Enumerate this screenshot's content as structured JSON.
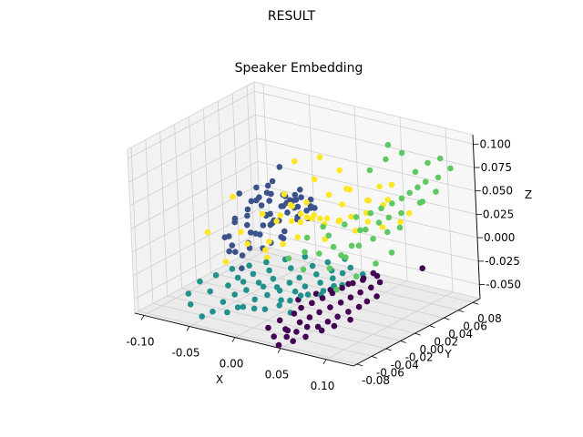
{
  "figure": {
    "suptitle": "RESULT"
  },
  "chart_data": {
    "type": "scatter",
    "projection": "3d",
    "title": "Speaker Embedding",
    "xlabel": "X",
    "ylabel": "Y",
    "zlabel": "Z",
    "xlim": [
      -0.11,
      0.13
    ],
    "ylim": [
      -0.085,
      0.09
    ],
    "zlim": [
      -0.065,
      0.11
    ],
    "x_ticks": [
      "-0.10",
      "-0.05",
      "0.00",
      "0.05",
      "0.10"
    ],
    "y_ticks": [
      "-0.08",
      "-0.06",
      "-0.04",
      "-0.02",
      "0.00",
      "0.02",
      "0.04",
      "0.06",
      "0.08"
    ],
    "z_ticks": [
      "-0.050",
      "-0.025",
      "0.000",
      "0.025",
      "0.050",
      "0.075",
      "0.100"
    ],
    "x_tick_values": [
      -0.1,
      -0.05,
      0.0,
      0.05,
      0.1
    ],
    "y_tick_values": [
      -0.08,
      -0.06,
      -0.04,
      -0.02,
      0.0,
      0.02,
      0.04,
      0.06,
      0.08
    ],
    "z_tick_values": [
      -0.05,
      -0.025,
      0.0,
      0.025,
      0.05,
      0.075,
      0.1
    ],
    "grid": true,
    "legend": "none",
    "colormap": "viridis",
    "series": [
      {
        "color": "#3b528b",
        "x": [
          -0.085,
          -0.08,
          -0.075,
          -0.072,
          -0.07,
          -0.068,
          -0.065,
          -0.063,
          -0.06,
          -0.058,
          -0.056,
          -0.055,
          -0.053,
          -0.052,
          -0.05,
          -0.049,
          -0.048,
          -0.046,
          -0.045,
          -0.044,
          -0.042,
          -0.041,
          -0.04,
          -0.039,
          -0.038,
          -0.036,
          -0.035,
          -0.033,
          -0.032,
          -0.03,
          -0.029,
          -0.028,
          -0.026,
          -0.025,
          -0.024,
          -0.022,
          -0.02,
          -0.018,
          -0.016,
          -0.015,
          -0.014,
          -0.012,
          -0.01,
          -0.008,
          -0.006,
          -0.004,
          -0.002,
          0.0,
          -0.062,
          -0.058,
          -0.054,
          -0.047,
          -0.043,
          -0.037,
          -0.031,
          -0.027,
          -0.021,
          -0.017,
          -0.011,
          -0.07,
          -0.066,
          -0.059,
          -0.051,
          -0.045,
          -0.034
        ],
        "y": [
          0.02,
          0.01,
          0.03,
          0.0,
          0.025,
          -0.01,
          0.035,
          0.015,
          -0.005,
          0.04,
          0.02,
          0.005,
          -0.015,
          0.03,
          0.01,
          0.045,
          -0.02,
          0.025,
          0.0,
          0.035,
          0.015,
          -0.01,
          0.04,
          0.02,
          0.005,
          0.03,
          -0.015,
          0.01,
          0.045,
          0.025,
          -0.005,
          0.035,
          0.015,
          0.0,
          0.04,
          0.02,
          0.03,
          0.01,
          0.045,
          0.025,
          0.005,
          0.035,
          0.015,
          0.04,
          0.02,
          0.03,
          0.01,
          0.025,
          0.05,
          0.0,
          0.03,
          0.01,
          0.045,
          0.02,
          0.035,
          0.005,
          0.03,
          0.04,
          0.025,
          0.015,
          0.035,
          0.0,
          0.02,
          0.04,
          0.01
        ],
        "z": [
          -0.03,
          -0.015,
          0.0,
          -0.025,
          0.01,
          -0.005,
          0.02,
          -0.02,
          0.015,
          -0.01,
          0.025,
          0.005,
          -0.015,
          0.03,
          -0.005,
          0.01,
          0.02,
          -0.02,
          0.035,
          0.0,
          0.015,
          -0.01,
          0.025,
          0.005,
          0.03,
          -0.015,
          0.01,
          0.02,
          0.0,
          0.035,
          0.015,
          0.025,
          -0.005,
          0.04,
          0.01,
          0.02,
          0.03,
          0.005,
          0.025,
          0.015,
          0.035,
          0.01,
          0.03,
          0.02,
          0.04,
          0.025,
          0.035,
          0.03,
          -0.01,
          0.04,
          0.005,
          0.045,
          0.015,
          0.05,
          0.025,
          0.045,
          0.035,
          0.015,
          0.045,
          -0.035,
          -0.02,
          -0.04,
          -0.025,
          0.055,
          0.05
        ]
      },
      {
        "color": "#fde725",
        "x": [
          -0.095,
          -0.06,
          -0.05,
          -0.04,
          -0.035,
          -0.03,
          -0.025,
          -0.02,
          -0.018,
          -0.015,
          -0.012,
          -0.01,
          -0.008,
          -0.005,
          -0.003,
          0.0,
          0.002,
          0.005,
          0.007,
          0.01,
          0.012,
          0.015,
          0.018,
          0.02,
          0.022,
          0.025,
          0.028,
          0.03,
          0.032,
          0.035,
          0.038,
          0.04,
          0.045,
          0.05,
          0.055,
          0.06,
          0.065,
          0.07,
          -0.045,
          -0.028,
          -0.008,
          0.004,
          0.016,
          0.026,
          0.036,
          0.046,
          0.058,
          -0.055,
          0.09,
          0.105
        ],
        "y": [
          0.0,
          -0.02,
          -0.01,
          0.01,
          -0.02,
          0.02,
          -0.01,
          0.03,
          0.0,
          -0.015,
          0.025,
          0.01,
          -0.005,
          0.035,
          0.015,
          0.0,
          0.04,
          0.02,
          -0.01,
          0.03,
          0.005,
          0.045,
          0.015,
          -0.005,
          0.035,
          0.02,
          0.05,
          0.01,
          0.04,
          0.025,
          0.055,
          0.03,
          0.045,
          0.06,
          0.035,
          0.05,
          0.04,
          0.06,
          -0.025,
          0.04,
          0.05,
          -0.015,
          0.055,
          0.0,
          0.06,
          0.01,
          0.065,
          0.03,
          0.02,
          0.03
        ],
        "z": [
          -0.01,
          -0.025,
          0.005,
          -0.02,
          0.0,
          0.015,
          0.03,
          -0.01,
          0.02,
          0.005,
          0.01,
          0.035,
          0.0,
          0.015,
          0.025,
          0.04,
          0.005,
          0.02,
          0.03,
          -0.005,
          0.045,
          0.01,
          0.025,
          0.035,
          0.015,
          0.05,
          0.0,
          0.03,
          0.02,
          0.04,
          0.01,
          0.055,
          0.025,
          0.005,
          0.045,
          0.035,
          0.06,
          0.015,
          0.05,
          0.065,
          0.07,
          0.06,
          0.04,
          0.075,
          0.03,
          0.085,
          0.05,
          -0.04,
          0.06,
          0.045
        ]
      },
      {
        "color": "#21918c",
        "x": [
          -0.07,
          -0.065,
          -0.06,
          -0.055,
          -0.05,
          -0.045,
          -0.04,
          -0.038,
          -0.035,
          -0.032,
          -0.03,
          -0.027,
          -0.025,
          -0.022,
          -0.02,
          -0.018,
          -0.015,
          -0.012,
          -0.01,
          -0.008,
          -0.005,
          -0.003,
          0.0,
          0.002,
          0.005,
          0.008,
          0.01,
          0.012,
          0.015,
          0.018,
          0.02,
          0.022,
          0.025,
          0.028,
          0.03,
          0.032,
          0.035,
          0.038,
          0.04,
          0.042,
          0.045,
          0.048,
          0.05,
          0.053,
          0.055,
          0.058,
          0.06,
          0.063,
          0.065,
          0.07,
          -0.048,
          -0.028,
          -0.006,
          0.016,
          0.034,
          0.052,
          0.068,
          0.075
        ],
        "y": [
          -0.06,
          -0.05,
          -0.07,
          -0.04,
          -0.055,
          -0.03,
          -0.065,
          -0.045,
          -0.035,
          -0.06,
          -0.025,
          -0.05,
          -0.04,
          -0.03,
          -0.055,
          -0.045,
          -0.02,
          -0.035,
          -0.06,
          -0.025,
          -0.05,
          -0.04,
          -0.03,
          -0.015,
          -0.045,
          -0.035,
          -0.055,
          -0.02,
          -0.04,
          -0.03,
          -0.01,
          -0.05,
          -0.025,
          -0.035,
          -0.045,
          -0.015,
          -0.03,
          -0.04,
          -0.02,
          -0.035,
          -0.01,
          -0.025,
          -0.04,
          -0.015,
          -0.03,
          -0.02,
          -0.005,
          -0.025,
          -0.015,
          -0.01,
          -0.07,
          -0.06,
          -0.05,
          -0.04,
          -0.05,
          -0.03,
          -0.02,
          0.0
        ],
        "z": [
          -0.045,
          -0.035,
          -0.05,
          -0.03,
          -0.04,
          -0.025,
          -0.055,
          -0.035,
          -0.03,
          -0.045,
          -0.02,
          -0.04,
          -0.03,
          -0.025,
          -0.05,
          -0.035,
          -0.015,
          -0.03,
          -0.045,
          -0.02,
          -0.04,
          -0.03,
          -0.025,
          -0.01,
          -0.035,
          -0.03,
          -0.045,
          -0.015,
          -0.03,
          -0.025,
          -0.005,
          -0.04,
          -0.02,
          -0.03,
          -0.035,
          -0.01,
          -0.025,
          -0.03,
          -0.015,
          -0.03,
          -0.005,
          -0.02,
          -0.035,
          -0.01,
          -0.025,
          -0.015,
          0.0,
          -0.02,
          -0.01,
          -0.005,
          -0.06,
          -0.055,
          -0.05,
          -0.04,
          -0.045,
          -0.03,
          -0.02,
          -0.015
        ]
      },
      {
        "color": "#5ec962",
        "x": [
          0.01,
          0.015,
          0.02,
          0.025,
          0.03,
          0.035,
          0.04,
          0.045,
          0.048,
          0.05,
          0.052,
          0.055,
          0.058,
          0.06,
          0.062,
          0.065,
          0.068,
          0.07,
          0.072,
          0.075,
          0.078,
          0.08,
          0.082,
          0.085,
          0.088,
          0.09,
          0.092,
          0.095,
          0.098,
          0.1,
          0.105,
          0.11,
          0.115,
          0.12,
          0.055,
          0.065,
          0.075,
          0.085,
          0.095,
          0.105,
          0.07,
          0.08,
          0.09,
          0.1,
          0.06,
          0.112
        ],
        "y": [
          -0.02,
          0.0,
          -0.01,
          0.01,
          -0.025,
          0.005,
          -0.015,
          0.015,
          -0.005,
          0.025,
          0.0,
          -0.02,
          0.02,
          0.005,
          0.03,
          -0.01,
          0.015,
          0.035,
          0.0,
          0.025,
          0.04,
          0.01,
          0.03,
          0.045,
          0.02,
          0.05,
          0.035,
          0.055,
          0.025,
          0.06,
          0.045,
          0.065,
          0.055,
          0.07,
          0.04,
          0.05,
          0.06,
          0.065,
          0.07,
          0.075,
          -0.03,
          -0.015,
          0.0,
          0.01,
          0.06,
          0.04
        ],
        "z": [
          -0.005,
          0.01,
          0.0,
          0.02,
          -0.01,
          0.015,
          0.005,
          0.025,
          0.01,
          0.03,
          0.0,
          -0.005,
          0.02,
          0.01,
          0.035,
          0.005,
          0.025,
          0.04,
          0.015,
          0.03,
          0.045,
          0.02,
          0.035,
          0.05,
          0.025,
          0.055,
          0.04,
          0.06,
          0.03,
          0.065,
          0.05,
          0.07,
          0.06,
          0.08,
          0.075,
          0.085,
          0.09,
          0.07,
          0.08,
          0.085,
          -0.02,
          -0.01,
          0.0,
          0.01,
          0.095,
          0.055
        ]
      },
      {
        "color": "#440154",
        "x": [
          0.025,
          0.03,
          0.035,
          0.038,
          0.04,
          0.042,
          0.045,
          0.048,
          0.05,
          0.052,
          0.055,
          0.058,
          0.06,
          0.062,
          0.065,
          0.068,
          0.07,
          0.072,
          0.075,
          0.078,
          0.08,
          0.082,
          0.085,
          0.088,
          0.09,
          0.092,
          0.095,
          0.098,
          0.1,
          0.103,
          0.106,
          0.11,
          0.044,
          0.056,
          0.066,
          0.076,
          0.086,
          0.096,
          0.035,
          0.047,
          0.059,
          0.071,
          0.083,
          0.095,
          0.03,
          0.125
        ],
        "y": [
          -0.07,
          -0.06,
          -0.075,
          -0.05,
          -0.065,
          -0.045,
          -0.07,
          -0.055,
          -0.04,
          -0.065,
          -0.05,
          -0.035,
          -0.06,
          -0.045,
          -0.03,
          -0.055,
          -0.04,
          -0.025,
          -0.05,
          -0.035,
          -0.02,
          -0.045,
          -0.03,
          -0.015,
          -0.04,
          -0.025,
          -0.01,
          -0.035,
          -0.02,
          -0.03,
          -0.015,
          -0.025,
          -0.08,
          -0.075,
          -0.07,
          -0.06,
          -0.055,
          -0.045,
          -0.04,
          -0.03,
          -0.025,
          -0.015,
          -0.01,
          -0.005,
          -0.05,
          0.02
        ],
        "z": [
          -0.055,
          -0.05,
          -0.06,
          -0.045,
          -0.055,
          -0.04,
          -0.06,
          -0.05,
          -0.035,
          -0.055,
          -0.045,
          -0.03,
          -0.05,
          -0.04,
          -0.025,
          -0.05,
          -0.035,
          -0.02,
          -0.045,
          -0.03,
          -0.015,
          -0.04,
          -0.025,
          -0.01,
          -0.035,
          -0.02,
          -0.005,
          -0.03,
          -0.015,
          -0.025,
          -0.01,
          -0.02,
          -0.065,
          -0.06,
          -0.055,
          -0.05,
          -0.045,
          -0.04,
          -0.035,
          -0.03,
          -0.025,
          -0.02,
          -0.015,
          -0.01,
          -0.065,
          -0.005
        ]
      }
    ]
  }
}
